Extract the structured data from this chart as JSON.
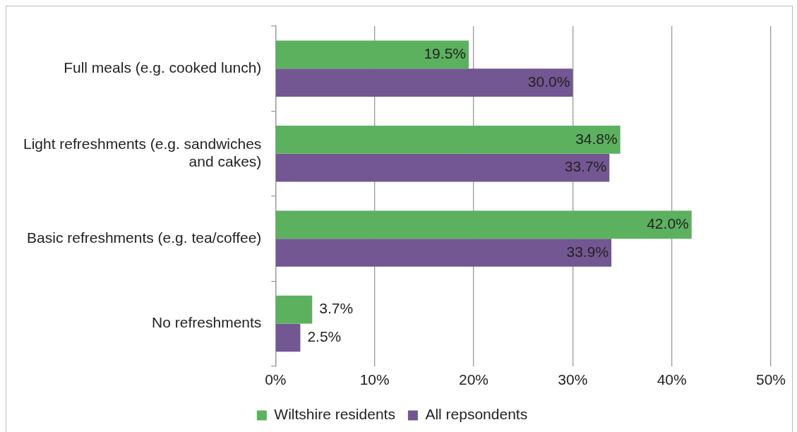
{
  "chart_data": {
    "type": "bar",
    "orientation": "horizontal",
    "categories": [
      "Full meals (e.g. cooked lunch)",
      "Light refreshments (e.g. sandwiches and cakes)",
      "Basic refreshments (e.g. tea/coffee)",
      "No refreshments"
    ],
    "series": [
      {
        "name": "Wiltshire residents",
        "color": "#5cb15f",
        "values": [
          19.5,
          34.8,
          42.0,
          3.7
        ],
        "value_labels": [
          "19.5%",
          "34.8%",
          "42.0%",
          "3.7%"
        ]
      },
      {
        "name": "All repsondents",
        "color": "#725792",
        "values": [
          30.0,
          33.7,
          33.9,
          2.5
        ],
        "value_labels": [
          "30.0%",
          "33.7%",
          "33.9%",
          "2.5%"
        ]
      }
    ],
    "xlim": [
      0,
      50
    ],
    "xticks": [
      {
        "value": 0,
        "label": "0%"
      },
      {
        "value": 10,
        "label": "10%"
      },
      {
        "value": 20,
        "label": "20%"
      },
      {
        "value": 30,
        "label": "30%"
      },
      {
        "value": 40,
        "label": "40%"
      },
      {
        "value": 50,
        "label": "50%"
      }
    ],
    "grid": "x",
    "legend": "bottom"
  }
}
